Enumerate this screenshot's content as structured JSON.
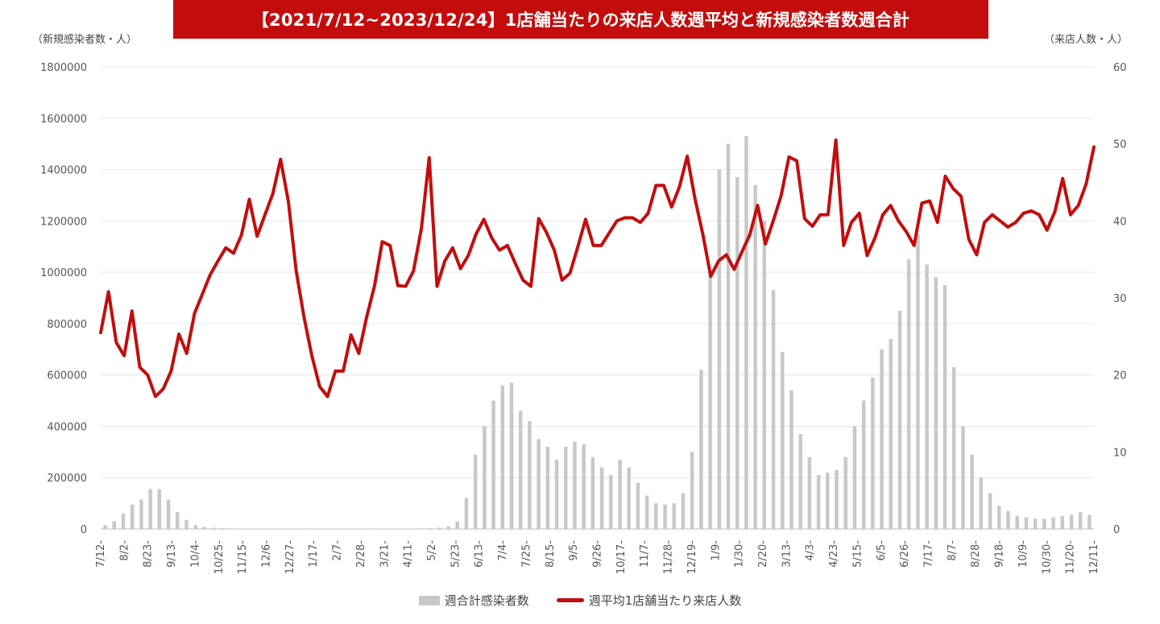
{
  "chart_data": {
    "type": "bar+line",
    "title": "【2021/7/12~2023/12/24】1店舗当たりの来店人数週平均と新規感染者数週合計",
    "ylabel_left": "（新規感染者数・人）",
    "ylabel_right": "（来店人数・人）",
    "ylim_left": [
      0,
      1800000
    ],
    "ylim_right": [
      0,
      60
    ],
    "yticks_left": [
      "1800000",
      "1600000",
      "1400000",
      "1200000",
      "1000000",
      "800000",
      "600000",
      "400000",
      "200000",
      "0"
    ],
    "yticks_right": [
      "60",
      "50",
      "40",
      "30",
      "20",
      "10",
      "0"
    ],
    "grid": true,
    "legend_position": "bottom",
    "colors": {
      "bars": "#c8c8c8",
      "line": "#c30d0d",
      "title_bg": "#c30d0d"
    },
    "x_tick_labels": [
      "7/12-",
      "8/2-",
      "8/23-",
      "9/13-",
      "10/4-",
      "10/25-",
      "11/15-",
      "12/6-",
      "12/27-",
      "1/17-",
      "2/7-",
      "2/28-",
      "3/21-",
      "4/11-",
      "5/2-",
      "5/23-",
      "6/13-",
      "7/4-",
      "7/25-",
      "8/15-",
      "9/5-",
      "9/26-",
      "10/17-",
      "11/7-",
      "11/28-",
      "12/19-",
      "1/9-",
      "1/30-",
      "2/20-",
      "3/13-",
      "4/3-",
      "4/23-",
      "5/15-",
      "6/5-",
      "6/26-",
      "7/17-",
      "8/7-",
      "8/28-",
      "9/18-",
      "10/9-",
      "10/30-",
      "11/20-",
      "12/11-"
    ],
    "series": [
      {
        "name": "週合計感染者数",
        "type": "bar",
        "axis": "left",
        "values": [
          15000,
          30000,
          60000,
          95000,
          115000,
          155000,
          155000,
          115000,
          65000,
          35000,
          15000,
          8000,
          5000,
          3000,
          2000,
          1500,
          1000,
          1000,
          1000,
          1000,
          1000,
          1000,
          1000,
          1000,
          1000,
          1000,
          1000,
          1000,
          1000,
          1000,
          1000,
          1000,
          1000,
          1000,
          1000,
          2000,
          3000,
          5000,
          10000,
          30000,
          120000,
          290000,
          400000,
          500000,
          560000,
          570000,
          460000,
          420000,
          350000,
          320000,
          270000,
          320000,
          340000,
          330000,
          280000,
          240000,
          210000,
          270000,
          240000,
          180000,
          130000,
          100000,
          95000,
          100000,
          140000,
          300000,
          620000,
          1000000,
          1400000,
          1500000,
          1370000,
          1530000,
          1340000,
          1200000,
          930000,
          690000,
          540000,
          370000,
          280000,
          210000,
          220000,
          230000,
          280000,
          400000,
          500000,
          590000,
          700000,
          740000,
          850000,
          1050000,
          1150000,
          1030000,
          980000,
          950000,
          630000,
          400000,
          290000,
          200000,
          140000,
          90000,
          70000,
          50000,
          45000,
          40000,
          40000,
          45000,
          50000,
          55000,
          65000,
          55000
        ]
      },
      {
        "name": "週平均1店舗当たり来店人数",
        "type": "line",
        "axis": "right",
        "values": [
          25.5,
          30.8,
          24.2,
          22.5,
          28.3,
          21.0,
          20.0,
          17.2,
          18.2,
          20.5,
          25.3,
          22.8,
          28.0,
          30.5,
          33.0,
          34.8,
          36.5,
          35.8,
          38.2,
          42.8,
          38.0,
          40.8,
          43.5,
          48.0,
          42.5,
          33.5,
          27.5,
          22.5,
          18.5,
          17.2,
          20.5,
          20.5,
          25.2,
          22.8,
          27.5,
          31.5,
          37.3,
          36.8,
          31.6,
          31.5,
          33.5,
          39.0,
          48.2,
          31.5,
          34.8,
          36.5,
          33.8,
          35.5,
          38.3,
          40.2,
          37.8,
          36.2,
          36.8,
          34.5,
          32.3,
          31.5,
          40.3,
          38.5,
          36.2,
          32.3,
          33.2,
          36.6,
          40.2,
          36.8,
          36.8,
          38.4,
          40.0,
          40.4,
          40.4,
          39.8,
          41.0,
          44.6,
          44.6,
          41.8,
          44.4,
          48.4,
          42.8,
          38.2,
          32.8,
          34.8,
          35.6,
          33.7,
          36.0,
          38.2,
          42.0,
          37.0,
          40.0,
          43.3,
          48.3,
          47.8,
          40.3,
          39.3,
          40.8,
          40.8,
          50.5,
          36.8,
          39.8,
          41.0,
          35.5,
          37.8,
          40.8,
          42.0,
          40.0,
          38.6,
          36.8,
          42.3,
          42.6,
          39.8,
          45.8,
          44.2,
          43.2,
          37.6,
          35.6,
          39.8,
          40.8,
          40.0,
          39.2,
          39.8,
          41.0,
          41.3,
          40.8,
          38.8,
          41.2,
          45.5,
          40.8,
          42.0,
          44.8,
          49.6
        ]
      }
    ]
  }
}
